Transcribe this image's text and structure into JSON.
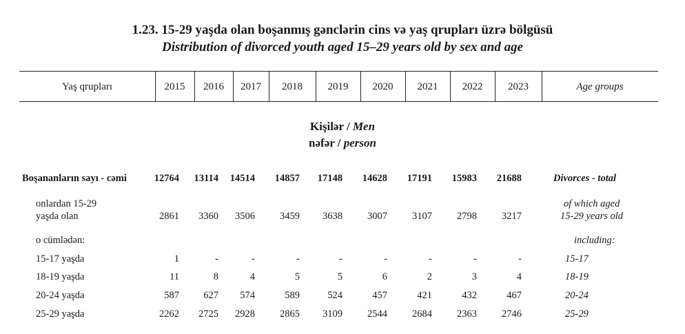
{
  "title_az": "1.23. 15-29 yaşda olan boşanmış gənclərin cins və yaş qrupları üzrə bölgüsü",
  "title_en": "Distribution of divorced youth aged 15–29 years old by sex and age",
  "header": {
    "left": "Yaş qrupları",
    "right": "Age groups",
    "years": [
      "2015",
      "2016",
      "2017",
      "2018",
      "2019",
      "2020",
      "2021",
      "2022",
      "2023"
    ]
  },
  "section": {
    "az": "Kişilər / ",
    "en": "Men",
    "unit_az": "nəfər / ",
    "unit_en": "person"
  },
  "rows": [
    {
      "label_az": "Boşananların sayı - cəmi",
      "label_en": "Divorces - total",
      "values": [
        "12764",
        "13114",
        "14514",
        "14857",
        "17148",
        "14628",
        "17191",
        "15983",
        "21688"
      ]
    },
    {
      "label_az": "onlardan 15-29",
      "label_az2": "yaşda olan",
      "label_en": "of which aged",
      "label_en2": "15-29 years old",
      "values": [
        "2861",
        "3360",
        "3506",
        "3459",
        "3638",
        "3007",
        "3107",
        "2798",
        "3217"
      ]
    },
    {
      "label_az": "o cümlədən:",
      "label_en": "including:",
      "values": []
    },
    {
      "label_az": "15-17 yaşda",
      "label_en": "15-17",
      "values": [
        "1",
        "-",
        "-",
        "-",
        "-",
        "-",
        "-",
        "-",
        "-"
      ]
    },
    {
      "label_az": "18-19 yaşda",
      "label_en": "18-19",
      "values": [
        "11",
        "8",
        "4",
        "5",
        "5",
        "6",
        "2",
        "3",
        "4"
      ]
    },
    {
      "label_az": "20-24 yaşda",
      "label_en": "20-24",
      "values": [
        "587",
        "627",
        "574",
        "589",
        "524",
        "457",
        "421",
        "432",
        "467"
      ]
    },
    {
      "label_az": "25-29 yaşda",
      "label_en": "25-29",
      "values": [
        "2262",
        "2725",
        "2928",
        "2865",
        "3109",
        "2544",
        "2684",
        "2363",
        "2746"
      ]
    }
  ]
}
